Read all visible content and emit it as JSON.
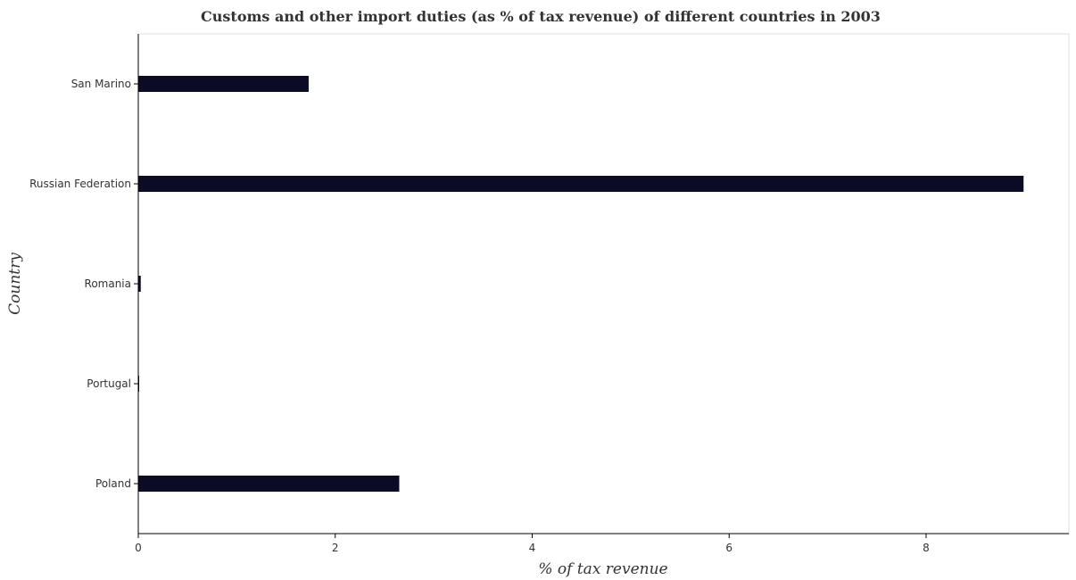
{
  "chart_data": {
    "type": "bar",
    "orientation": "horizontal",
    "title": "Customs and other import duties (as % of tax revenue) of different countries in 2003",
    "xlabel": "% of tax revenue",
    "ylabel": "Country",
    "categories": [
      "Poland",
      "Portugal",
      "Romania",
      "Russian Federation",
      "San Marino"
    ],
    "values": [
      2.65,
      0.005,
      0.025,
      8.99,
      1.73
    ],
    "xlim": [
      0,
      9.45
    ],
    "xticks": [
      0,
      2,
      4,
      6,
      8
    ],
    "xtick_labels": [
      "0",
      "2",
      "4",
      "6",
      "8"
    ],
    "grid": false,
    "bar_color": "#0b0b26"
  }
}
